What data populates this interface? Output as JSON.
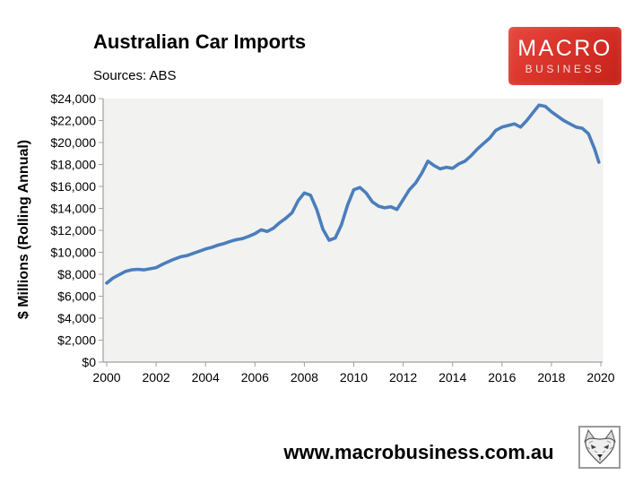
{
  "header": {
    "title": "Australian Car Imports",
    "source": "Sources: ABS"
  },
  "logo": {
    "line1": "MACRO",
    "line2": "BUSINESS",
    "bg_color": "#d9332a"
  },
  "footer": {
    "url": "www.macrobusiness.com.au"
  },
  "chart_data": {
    "type": "line",
    "title": "Australian Car Imports",
    "xlabel": "",
    "ylabel": "$ Millions (Rolling Annual)",
    "ylim": [
      0,
      24000
    ],
    "xlim": [
      2000,
      2020.2
    ],
    "grid": false,
    "legend": "none",
    "plot_bg_color": "#f2f2f0",
    "axis_color": "#a0a0a0",
    "line_color": "#4a7ebc",
    "y_tick_values": [
      0,
      2000,
      4000,
      6000,
      8000,
      10000,
      12000,
      14000,
      16000,
      18000,
      20000,
      22000,
      24000
    ],
    "y_tick_labels": [
      "$0",
      "$2,000",
      "$4,000",
      "$6,000",
      "$8,000",
      "$10,000",
      "$12,000",
      "$14,000",
      "$16,000",
      "$18,000",
      "$20,000",
      "$22,000",
      "$24,000"
    ],
    "x_tick_values": [
      2000,
      2002,
      2004,
      2006,
      2008,
      2010,
      2012,
      2014,
      2016,
      2018,
      2020
    ],
    "x_tick_labels": [
      "2000",
      "2002",
      "2004",
      "2006",
      "2008",
      "2010",
      "2012",
      "2014",
      "2016",
      "2018",
      "2020"
    ],
    "series": [
      {
        "name": "Australian car imports ($m, rolling annual)",
        "x": [
          2000,
          2000.25,
          2000.5,
          2000.75,
          2001,
          2001.25,
          2001.5,
          2001.75,
          2002,
          2002.25,
          2002.5,
          2002.75,
          2003,
          2003.25,
          2003.5,
          2003.75,
          2004,
          2004.25,
          2004.5,
          2004.75,
          2005,
          2005.25,
          2005.5,
          2005.75,
          2006,
          2006.25,
          2006.5,
          2006.75,
          2007,
          2007.25,
          2007.5,
          2007.75,
          2008,
          2008.25,
          2008.5,
          2008.75,
          2009,
          2009.25,
          2009.5,
          2009.75,
          2010,
          2010.25,
          2010.5,
          2010.75,
          2011,
          2011.25,
          2011.5,
          2011.75,
          2012,
          2012.25,
          2012.5,
          2012.75,
          2013,
          2013.25,
          2013.5,
          2013.75,
          2014,
          2014.25,
          2014.5,
          2014.75,
          2015,
          2015.25,
          2015.5,
          2015.75,
          2016,
          2016.25,
          2016.5,
          2016.75,
          2017,
          2017.25,
          2017.5,
          2017.75,
          2018,
          2018.25,
          2018.5,
          2018.75,
          2019,
          2019.25,
          2019.5,
          2019.75,
          2019.92
        ],
        "values": [
          7200,
          7650,
          7950,
          8250,
          8400,
          8450,
          8400,
          8500,
          8600,
          8900,
          9150,
          9400,
          9600,
          9700,
          9900,
          10100,
          10300,
          10450,
          10650,
          10800,
          11000,
          11150,
          11250,
          11450,
          11700,
          12050,
          11900,
          12200,
          12700,
          13100,
          13600,
          14700,
          15400,
          15200,
          13900,
          12100,
          11100,
          11300,
          12500,
          14300,
          15700,
          15900,
          15400,
          14600,
          14200,
          14050,
          14150,
          13900,
          14800,
          15700,
          16300,
          17200,
          18300,
          17900,
          17600,
          17750,
          17650,
          18050,
          18300,
          18800,
          19400,
          19900,
          20400,
          21100,
          21400,
          21550,
          21700,
          21400,
          22000,
          22700,
          23400,
          23300,
          22800,
          22400,
          22000,
          21700,
          21400,
          21300,
          20800,
          19400,
          18200
        ]
      }
    ]
  }
}
